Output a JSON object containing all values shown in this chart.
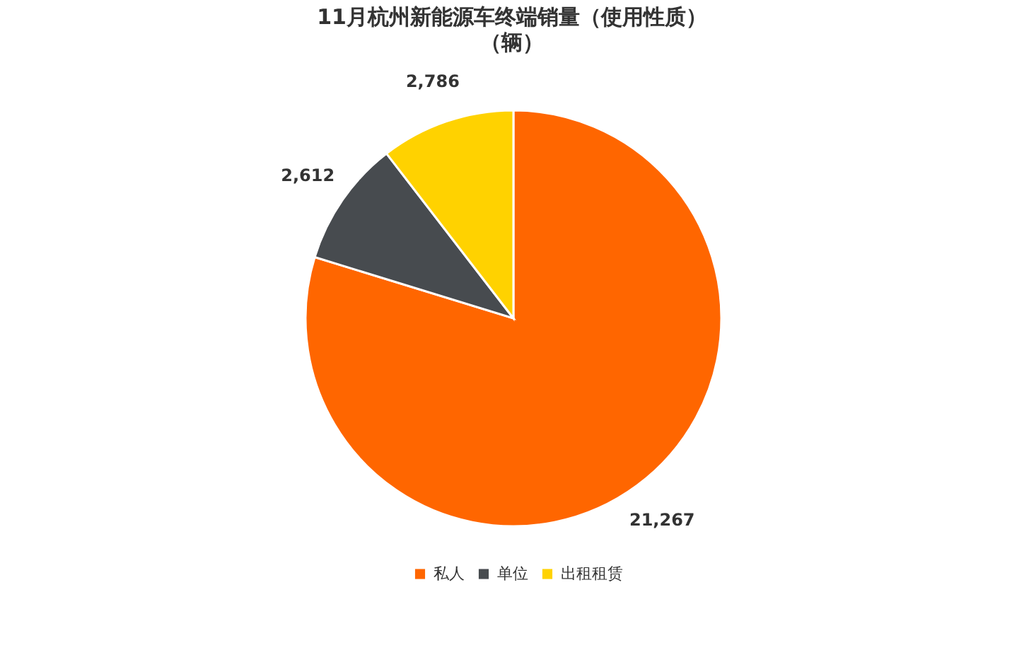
{
  "chart_data": {
    "type": "pie",
    "title": "11月杭州新能源车终端销量（使用性质）",
    "subtitle": "（辆）",
    "categories": [
      "私人",
      "单位",
      "出租租赁"
    ],
    "values": [
      21267,
      2612,
      2786
    ],
    "colors": [
      "#ff6600",
      "#474b4f",
      "#ffd200"
    ],
    "value_labels": [
      "21,267",
      "2,612",
      "2,786"
    ],
    "legend": "bottom"
  }
}
